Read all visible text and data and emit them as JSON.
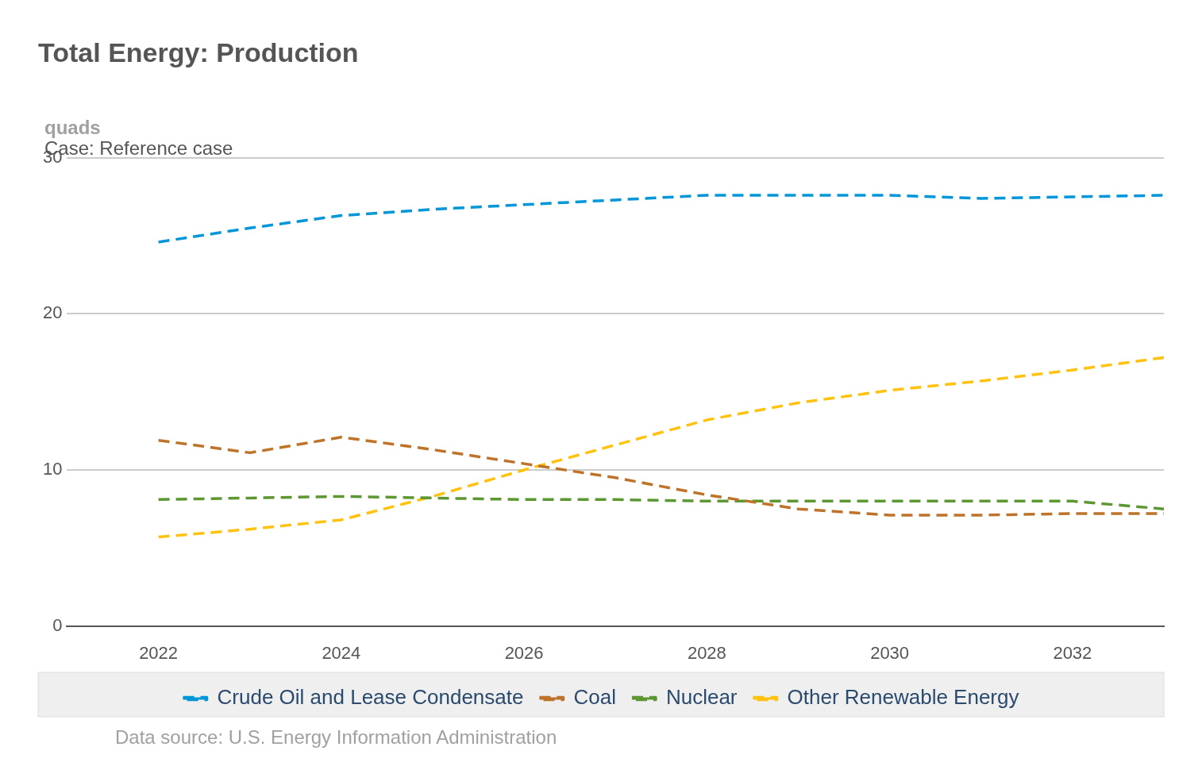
{
  "chart_data": {
    "type": "line",
    "title": "Total Energy: Production",
    "ylabel": "quads",
    "annotations": [
      "Case: Reference case",
      "Data source: U.S. Energy Information Administration"
    ],
    "x": [
      2022,
      2023,
      2024,
      2025,
      2026,
      2027,
      2028,
      2029,
      2030,
      2031,
      2032,
      2033
    ],
    "series": [
      {
        "name": "Crude Oil and Lease Condensate",
        "color": "#0096d7",
        "values": [
          24.6,
          25.5,
          26.3,
          26.7,
          27.0,
          27.3,
          27.6,
          27.6,
          27.6,
          27.4,
          27.5,
          27.6
        ]
      },
      {
        "name": "Coal",
        "color": "#bd732a",
        "values": [
          11.9,
          11.1,
          12.1,
          11.3,
          10.4,
          9.5,
          8.4,
          7.5,
          7.1,
          7.1,
          7.2,
          7.2
        ]
      },
      {
        "name": "Nuclear",
        "color": "#5d9732",
        "values": [
          8.1,
          8.2,
          8.3,
          8.2,
          8.1,
          8.1,
          8.0,
          8.0,
          8.0,
          8.0,
          8.0,
          7.5
        ]
      },
      {
        "name": "Other Renewable Energy",
        "color": "#ffc20e",
        "values": [
          5.7,
          6.2,
          6.8,
          8.3,
          10.0,
          11.6,
          13.2,
          14.3,
          15.1,
          15.7,
          16.4,
          17.2
        ]
      }
    ],
    "xlim": [
      2021,
      2033
    ],
    "xticks": [
      2022,
      2024,
      2026,
      2028,
      2030,
      2032
    ],
    "ylim": [
      0,
      30
    ],
    "yticks": [
      0,
      10,
      20,
      30
    ],
    "grid": "y",
    "legend": "bottom",
    "line_style": "dashed",
    "marker": "none"
  }
}
